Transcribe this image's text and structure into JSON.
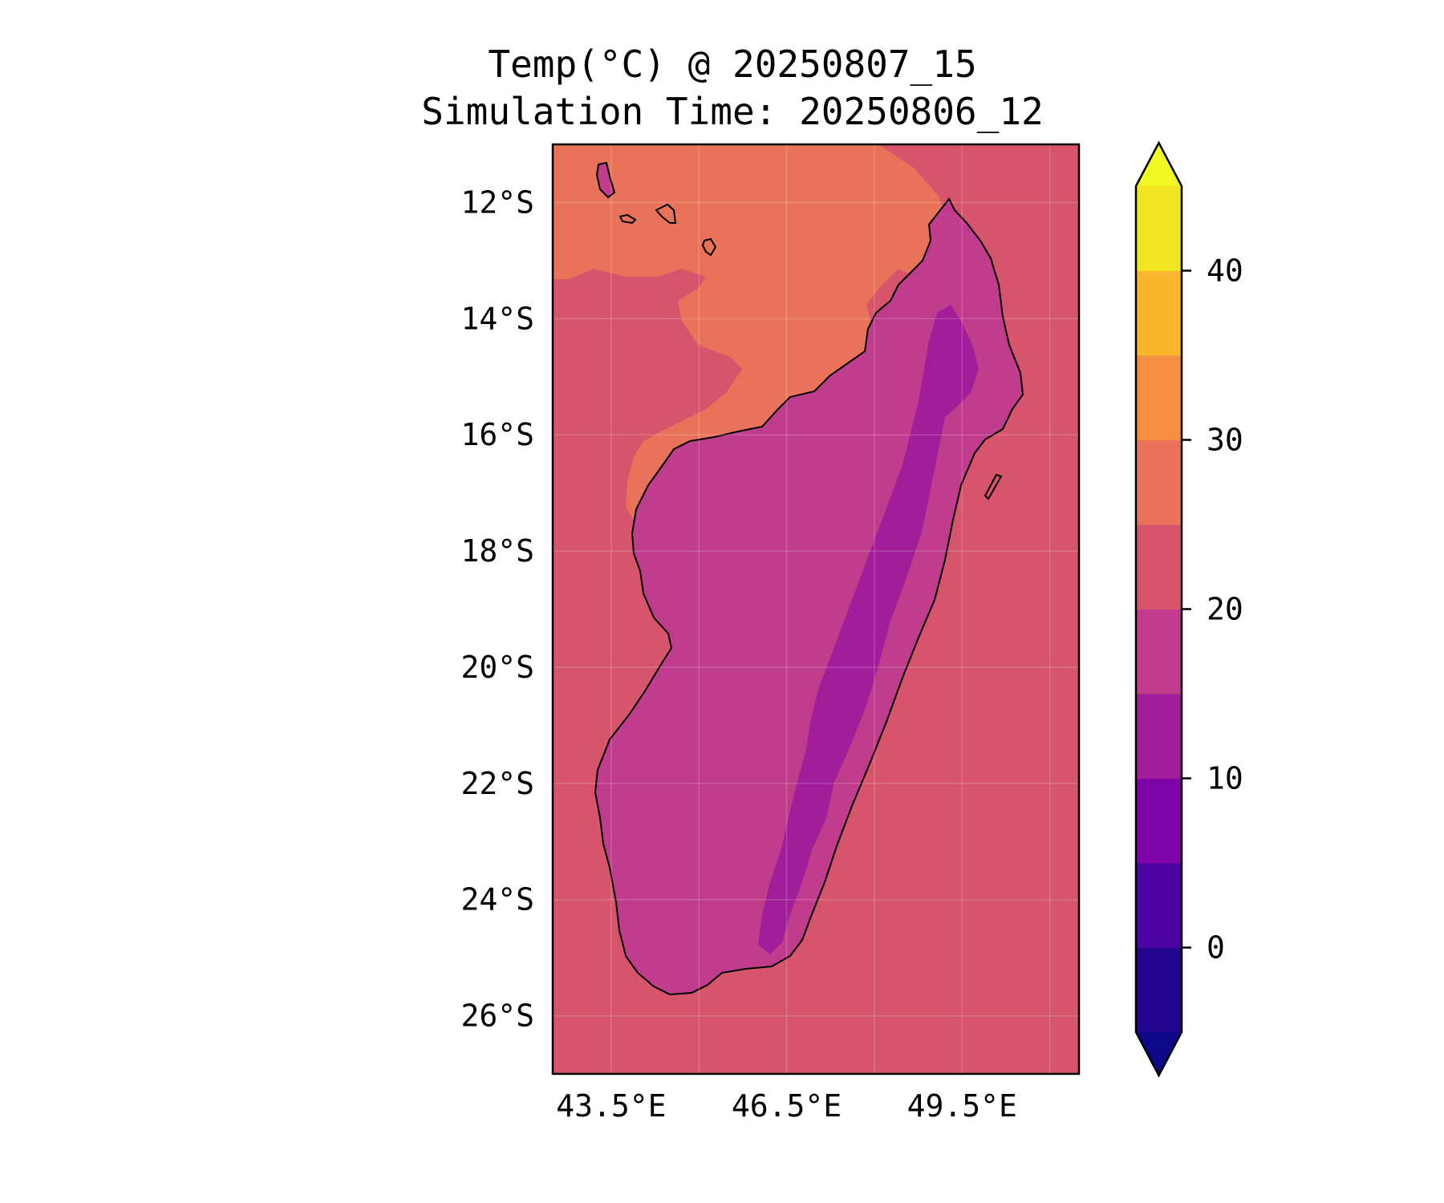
{
  "title": {
    "line1": "Temp(°C) @ 20250807_15",
    "line2": "Simulation Time: 20250806_12"
  },
  "map": {
    "region": "Madagascar",
    "variable": "Temperature",
    "units": "°C",
    "lon_range": [
      42.5,
      51.5
    ],
    "lat_range": [
      -27,
      -11
    ],
    "gridlines": true,
    "lat_ticks": [
      {
        "value": -12,
        "label": "12°S"
      },
      {
        "value": -14,
        "label": "14°S"
      },
      {
        "value": -16,
        "label": "16°S"
      },
      {
        "value": -18,
        "label": "18°S"
      },
      {
        "value": -20,
        "label": "20°S"
      },
      {
        "value": -22,
        "label": "22°S"
      },
      {
        "value": -24,
        "label": "24°S"
      },
      {
        "value": -26,
        "label": "26°S"
      }
    ],
    "lon_ticks": [
      {
        "value": 43.5,
        "label": "43.5°E"
      },
      {
        "value": 46.5,
        "label": "46.5°E"
      },
      {
        "value": 49.5,
        "label": "49.5°E"
      }
    ],
    "colors": {
      "ocean_default": "#d6556d",
      "warm_sea": "#e8735a",
      "land_cool": "#c03c8c",
      "land_cold": "#a11d9a",
      "coastline": "#000000"
    }
  },
  "colorbar": {
    "levels": [
      -5,
      0,
      5,
      10,
      15,
      20,
      25,
      30,
      35,
      40,
      45
    ],
    "colors": [
      "#24068e",
      "#4b03a1",
      "#7d03a8",
      "#a11d9a",
      "#c03c8c",
      "#d6556d",
      "#e8735a",
      "#f68f44",
      "#fcb52f",
      "#f1e523"
    ],
    "under_color": "#0d0887",
    "over_color": "#f0f921",
    "extend": "both",
    "ticks": [
      {
        "value": 0,
        "label": "0"
      },
      {
        "value": 10,
        "label": "10"
      },
      {
        "value": 20,
        "label": "20"
      },
      {
        "value": 30,
        "label": "30"
      },
      {
        "value": 40,
        "label": "40"
      }
    ]
  }
}
